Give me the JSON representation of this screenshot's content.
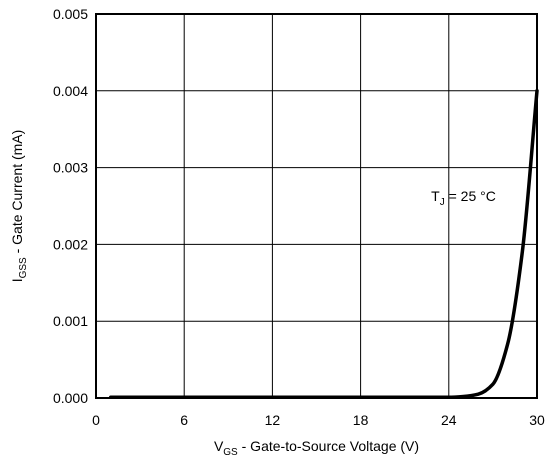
{
  "chart_data": {
    "type": "line",
    "title": "",
    "xlabel": {
      "main": "V",
      "sub": "GS",
      "rest": " - Gate-to-Source Voltage (V)"
    },
    "ylabel": {
      "main": "I",
      "sub": "GSS",
      "rest": " - Gate Current (mA)"
    },
    "xlim": [
      0,
      30
    ],
    "ylim": [
      0,
      0.005
    ],
    "xticks": [
      0,
      6,
      12,
      18,
      24,
      30
    ],
    "xtick_labels": [
      "0",
      "6",
      "12",
      "18",
      "24",
      "30"
    ],
    "yticks": [
      0,
      0.001,
      0.002,
      0.003,
      0.004,
      0.005
    ],
    "ytick_labels": [
      "0.000",
      "0.001",
      "0.002",
      "0.003",
      "0.004",
      "0.005"
    ],
    "grid": true,
    "series": [
      {
        "x": [
          1,
          4,
          8,
          12,
          16,
          20,
          24,
          25,
          26,
          27,
          28,
          29,
          30
        ],
        "y": [
          1e-05,
          1e-05,
          1e-05,
          1e-05,
          1e-05,
          1e-05,
          1e-05,
          2e-05,
          5e-05,
          0.00018,
          0.0007,
          0.0019,
          0.004
        ]
      }
    ],
    "annotation": {
      "main": "T",
      "sub": "J",
      "rest": " = 25 °C",
      "x": 22.8,
      "y": 0.0025
    },
    "colors": {
      "line": "#000000",
      "grid": "#000000",
      "frame": "#000000",
      "background": "#ffffff"
    }
  }
}
